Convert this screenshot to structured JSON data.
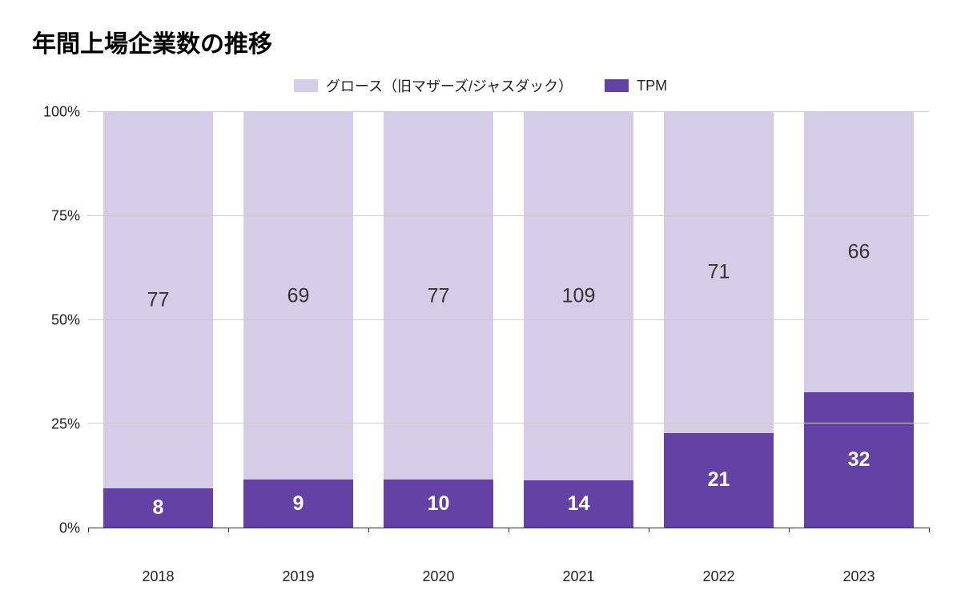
{
  "chart": {
    "type": "stacked-bar-100pct",
    "title": "年間上場企業数の推移",
    "title_fontsize": 30,
    "title_fontweight": 900,
    "title_color": "#000000",
    "background_color": "#ffffff",
    "legend": {
      "position": "top-center",
      "items": [
        {
          "label": "グロース（旧マザーズ/ジャスダック）",
          "color": "#d5cce8"
        },
        {
          "label": "TPM",
          "color": "#6441a5"
        }
      ],
      "fontsize": 18,
      "swatch_width": 30,
      "swatch_height": 16
    },
    "y_axis": {
      "ylim": [
        0,
        100
      ],
      "ticks": [
        0,
        25,
        50,
        75,
        100
      ],
      "tick_labels": [
        "0%",
        "25%",
        "50%",
        "75%",
        "100%"
      ],
      "fontsize": 18,
      "color": "#222222",
      "grid_color": "#cccccc",
      "axis_line_color": "#333333"
    },
    "x_axis": {
      "categories": [
        "2018",
        "2019",
        "2020",
        "2021",
        "2022",
        "2023"
      ],
      "fontsize": 18,
      "color": "#222222"
    },
    "series": [
      {
        "name": "グロース（旧マザーズ/ジャスダック）",
        "color": "#d5cce8",
        "values": [
          77,
          69,
          77,
          109,
          71,
          66
        ],
        "label_color": "#333333",
        "label_fontsize": 25,
        "label_fontweight": 400,
        "label_position": "middle"
      },
      {
        "name": "TPM",
        "color": "#6441a5",
        "values": [
          8,
          9,
          10,
          14,
          21,
          32
        ],
        "label_color": "#ffffff",
        "label_fontsize": 25,
        "label_fontweight": 800,
        "label_position": "inside"
      }
    ],
    "bar_width_pct": 78
  }
}
